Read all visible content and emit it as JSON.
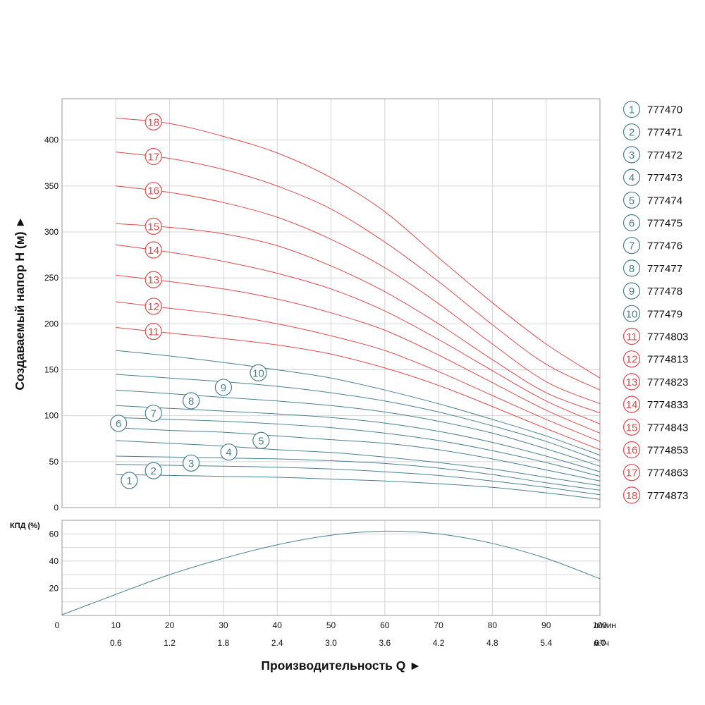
{
  "colors": {
    "teal": "#4a7f92",
    "red": "#e04a4a",
    "grid": "#d4d4d4",
    "frame": "#9a9a9a",
    "text": "#111111"
  },
  "chart_data": [
    {
      "type": "line",
      "title": "",
      "ylabel": "Создаваемый напор H (м) ►",
      "xlabel": "Производительность Q ►",
      "xlim": [
        0,
        100
      ],
      "ylim": [
        0,
        445
      ],
      "x_ticks": [
        0,
        10,
        20,
        30,
        40,
        50,
        60,
        70,
        80,
        90,
        100
      ],
      "y_ticks": [
        0,
        50,
        100,
        150,
        200,
        250,
        300,
        350,
        400
      ],
      "x_unit": "л/мин",
      "x_ticks_secondary": [
        "0.6",
        "1.2",
        "1.8",
        "2.4",
        "3.0",
        "3.6",
        "4.2",
        "4.8",
        "5.4",
        "6.0"
      ],
      "x_unit_secondary": "м³/ч",
      "grid": true,
      "legend_position": "right",
      "x": [
        10,
        20,
        30,
        40,
        50,
        60,
        70,
        80,
        90,
        100
      ],
      "series": [
        {
          "name": "777470",
          "label": "1",
          "color": "teal",
          "values": [
            36,
            35,
            34,
            33,
            31,
            29,
            26,
            22,
            16,
            9
          ]
        },
        {
          "name": "777471",
          "label": "2",
          "color": "teal",
          "values": [
            47,
            46,
            45,
            44,
            42,
            39,
            35,
            29,
            22,
            14
          ]
        },
        {
          "name": "777472",
          "label": "3",
          "color": "teal",
          "values": [
            56,
            55,
            54,
            53,
            51,
            48,
            43,
            36,
            27,
            19
          ]
        },
        {
          "name": "777473",
          "label": "4",
          "color": "teal",
          "values": [
            73,
            70,
            67,
            63,
            60,
            55,
            49,
            42,
            33,
            24
          ]
        },
        {
          "name": "777474",
          "label": "5",
          "color": "teal",
          "values": [
            87,
            84,
            82,
            78,
            74,
            70,
            63,
            53,
            41,
            29
          ]
        },
        {
          "name": "777475",
          "label": "6",
          "color": "teal",
          "values": [
            98,
            96,
            94,
            91,
            87,
            81,
            73,
            62,
            49,
            34
          ]
        },
        {
          "name": "777476",
          "label": "7",
          "color": "teal",
          "values": [
            111,
            108,
            105,
            102,
            98,
            92,
            83,
            71,
            56,
            39
          ]
        },
        {
          "name": "777477",
          "label": "8",
          "color": "teal",
          "values": [
            128,
            124,
            120,
            116,
            111,
            104,
            94,
            81,
            64,
            45
          ]
        },
        {
          "name": "777478",
          "label": "9",
          "color": "teal",
          "values": [
            145,
            141,
            137,
            132,
            125,
            116,
            104,
            89,
            72,
            51
          ]
        },
        {
          "name": "777479",
          "label": "10",
          "color": "teal",
          "values": [
            171,
            165,
            158,
            150,
            141,
            128,
            113,
            96,
            78,
            57
          ]
        },
        {
          "name": "7774803",
          "label": "11",
          "color": "red",
          "values": [
            196,
            190,
            184,
            177,
            167,
            152,
            133,
            110,
            86,
            63
          ]
        },
        {
          "name": "7774813",
          "label": "12",
          "color": "red",
          "values": [
            224,
            217,
            210,
            200,
            187,
            171,
            148,
            122,
            96,
            72
          ]
        },
        {
          "name": "7774823",
          "label": "13",
          "color": "red",
          "values": [
            253,
            246,
            238,
            227,
            212,
            193,
            166,
            136,
            106,
            81
          ]
        },
        {
          "name": "7774833",
          "label": "14",
          "color": "red",
          "values": [
            286,
            278,
            268,
            255,
            238,
            214,
            183,
            149,
            116,
            91
          ]
        },
        {
          "name": "7774843",
          "label": "15",
          "color": "red",
          "values": [
            309,
            305,
            298,
            285,
            263,
            235,
            200,
            161,
            125,
            103
          ]
        },
        {
          "name": "7774853",
          "label": "16",
          "color": "red",
          "values": [
            350,
            343,
            332,
            316,
            292,
            261,
            222,
            178,
            137,
            113
          ]
        },
        {
          "name": "7774863",
          "label": "17",
          "color": "red",
          "values": [
            387,
            380,
            368,
            350,
            325,
            289,
            246,
            199,
            156,
            128
          ]
        },
        {
          "name": "7774873",
          "label": "18",
          "color": "red",
          "values": [
            424,
            418,
            404,
            386,
            359,
            322,
            272,
            223,
            178,
            141
          ]
        }
      ]
    },
    {
      "type": "line",
      "title": "",
      "ylabel": "КПД (%)",
      "xlim": [
        0,
        100
      ],
      "ylim": [
        0,
        70
      ],
      "y_ticks": [
        20,
        40,
        60
      ],
      "grid": true,
      "series": [
        {
          "color": "teal",
          "x": [
            0,
            10,
            20,
            30,
            40,
            50,
            60,
            70,
            80,
            90,
            100
          ],
          "values": [
            0.5,
            15.5,
            30,
            42,
            52,
            59,
            62,
            60,
            53,
            42,
            27
          ]
        }
      ]
    }
  ]
}
